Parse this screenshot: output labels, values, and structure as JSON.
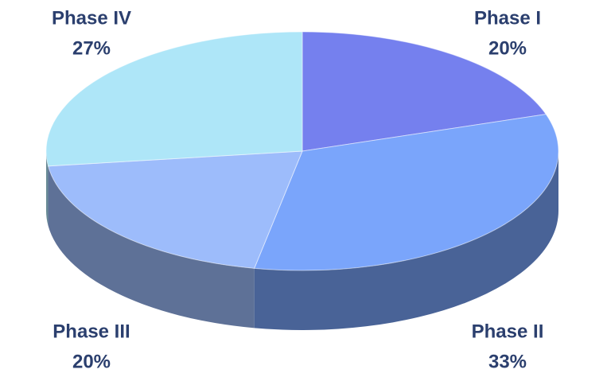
{
  "chart_data": {
    "type": "pie",
    "categories": [
      "Phase I",
      "Phase II",
      "Phase III",
      "Phase IV"
    ],
    "values": [
      20,
      33,
      20,
      27
    ],
    "value_labels": [
      "20%",
      "33%",
      "20%",
      "27%"
    ],
    "colors": [
      "#7580ee",
      "#7aa5fb",
      "#9dbcfb",
      "#aee6f8"
    ]
  }
}
